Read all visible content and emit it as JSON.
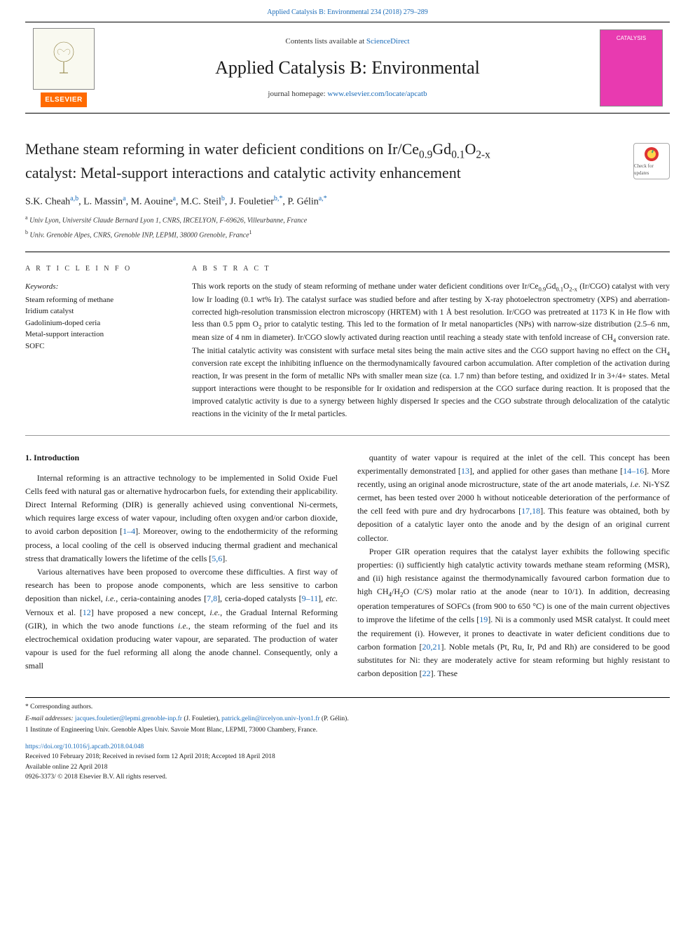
{
  "meta": {
    "top_citation": "Applied Catalysis B: Environmental 234 (2018) 279–289",
    "contents_line_prefix": "Contents lists available at ",
    "contents_line_link": "ScienceDirect",
    "journal_name": "Applied Catalysis B: Environmental",
    "homepage_prefix": "journal homepage: ",
    "homepage_url": "www.elsevier.com/locate/apcatb",
    "publisher_label": "ELSEVIER",
    "cover_label": "CATALYSIS"
  },
  "colors": {
    "link": "#1a6bb8",
    "accent_orange": "#ff6a00",
    "cover_pink": "#e83ab0",
    "text": "#1a1a1a",
    "rule": "#000000"
  },
  "title": {
    "line1_pre": "Methane steam reforming in water deficient conditions on Ir/Ce",
    "line1_sub1": "0.9",
    "line1_mid1": "Gd",
    "line1_sub2": "0.1",
    "line1_mid2": "O",
    "line1_sub3": "2-x",
    "line2": "catalyst: Metal-support interactions and catalytic activity enhancement",
    "badge_label": "Check for updates"
  },
  "authors_html": "S.K. Cheah<sup>a,b</sup>, L. Massin<sup>a</sup>, M. Aouine<sup>a</sup>, M.C. Steil<sup>b</sup>, J. Fouletier<sup>b,*</sup>, P. Gélin<sup>a,*</sup>",
  "affiliations": {
    "a": "Univ Lyon, Université Claude Bernard Lyon 1, CNRS, IRCELYON, F-69626, Villeurbanne, France",
    "b": "Univ. Grenoble Alpes, CNRS, Grenoble INP, LEPMI, 38000 Grenoble, France",
    "b_note_marker": "1"
  },
  "article_info": {
    "heading": "A R T I C L E  I N F O",
    "keywords_label": "Keywords:",
    "keywords": [
      "Steam reforming of methane",
      "Iridium catalyst",
      "Gadolinium-doped ceria",
      "Metal-support interaction",
      "SOFC"
    ]
  },
  "abstract": {
    "heading": "A B S T R A C T",
    "text": "This work reports on the study of steam reforming of methane under water deficient conditions over Ir/Ce0.9Gd0.1O2-x (Ir/CGO) catalyst with very low Ir loading (0.1 wt% Ir). The catalyst surface was studied before and after testing by X-ray photoelectron spectrometry (XPS) and aberration-corrected high-resolution transmission electron microscopy (HRTEM) with 1 Å best resolution. Ir/CGO was pretreated at 1173 K in He flow with less than 0.5 ppm O2 prior to catalytic testing. This led to the formation of Ir metal nanoparticles (NPs) with narrow-size distribution (2.5–6 nm, mean size of 4 nm in diameter). Ir/CGO slowly activated during reaction until reaching a steady state with tenfold increase of CH4 conversion rate. The initial catalytic activity was consistent with surface metal sites being the main active sites and the CGO support having no effect on the CH4 conversion rate except the inhibiting influence on the thermodynamically favoured carbon accumulation. After completion of the activation during reaction, Ir was present in the form of metallic NPs with smaller mean size (ca. 1.7 nm) than before testing, and oxidized Ir in 3+/4+ states. Metal support interactions were thought to be responsible for Ir oxidation and redispersion at the CGO surface during reaction. It is proposed that the improved catalytic activity is due to a synergy between highly dispersed Ir species and the CGO substrate through delocalization of the catalytic reactions in the vicinity of the Ir metal particles."
  },
  "body": {
    "section_heading": "1. Introduction",
    "left_paras": [
      "Internal reforming is an attractive technology to be implemented in Solid Oxide Fuel Cells feed with natural gas or alternative hydrocarbon fuels, for extending their applicability. Direct Internal Reforming (DIR) is generally achieved using conventional Ni-cermets, which requires large excess of water vapour, including often oxygen and/or carbon dioxide, to avoid carbon deposition [1–4]. Moreover, owing to the endothermicity of the reforming process, a local cooling of the cell is observed inducing thermal gradient and mechanical stress that dramatically lowers the lifetime of the cells [5,6].",
      "Various alternatives have been proposed to overcome these difficulties. A first way of research has been to propose anode components, which are less sensitive to carbon deposition than nickel, i.e., ceria-containing anodes [7,8], ceria-doped catalysts [9–11], etc. Vernoux et al. [12] have proposed a new concept, i.e., the Gradual Internal Reforming (GIR), in which the two anode functions i.e., the steam reforming of the fuel and its electrochemical oxidation producing water vapour, are separated. The production of water vapour is used for the fuel reforming all along the anode channel. Consequently, only a small"
    ],
    "right_paras": [
      "quantity of water vapour is required at the inlet of the cell. This concept has been experimentally demonstrated [13], and applied for other gases than methane [14–16]. More recently, using an original anode microstructure, state of the art anode materials, i.e. Ni-YSZ cermet, has been tested over 2000 h without noticeable deterioration of the performance of the cell feed with pure and dry hydrocarbons [17,18]. This feature was obtained, both by deposition of a catalytic layer onto the anode and by the design of an original current collector.",
      "Proper GIR operation requires that the catalyst layer exhibits the following specific properties: (i) sufficiently high catalytic activity towards methane steam reforming (MSR), and (ii) high resistance against the thermodynamically favoured carbon formation due to high CH4/H2O (C/S) molar ratio at the anode (near to 10/1). In addition, decreasing operation temperatures of SOFCs (from 900 to 650 °C) is one of the main current objectives to improve the lifetime of the cells [19]. Ni is a commonly used MSR catalyst. It could meet the requirement (i). However, it prones to deactivate in water deficient conditions due to carbon formation [20,21]. Noble metals (Pt, Ru, Ir, Pd and Rh) are considered to be good substitutes for Ni: they are moderately active for steam reforming but highly resistant to carbon deposition [22]. These"
    ],
    "refs": [
      "1–4",
      "5,6",
      "7,8",
      "9–11",
      "12",
      "13",
      "14–16",
      "17,18",
      "19",
      "20,21",
      "22"
    ]
  },
  "footnotes": {
    "corresponding": "* Corresponding authors.",
    "email_label": "E-mail addresses: ",
    "email1": "jacques.fouletier@lepmi.grenoble-inp.fr",
    "email1_who": " (J. Fouletier), ",
    "email2": "patrick.gelin@ircelyon.univ-lyon1.fr",
    "email2_who": " (P. Gélin).",
    "note1": "1 Institute of Engineering Univ. Grenoble Alpes Univ. Savoie Mont Blanc, LEPMI, 73000 Chambery, France."
  },
  "doi_block": {
    "doi": "https://doi.org/10.1016/j.apcatb.2018.04.048",
    "received": "Received 10 February 2018; Received in revised form 12 April 2018; Accepted 18 April 2018",
    "available": "Available online 22 April 2018",
    "copyright": "0926-3373/ © 2018 Elsevier B.V. All rights reserved."
  }
}
